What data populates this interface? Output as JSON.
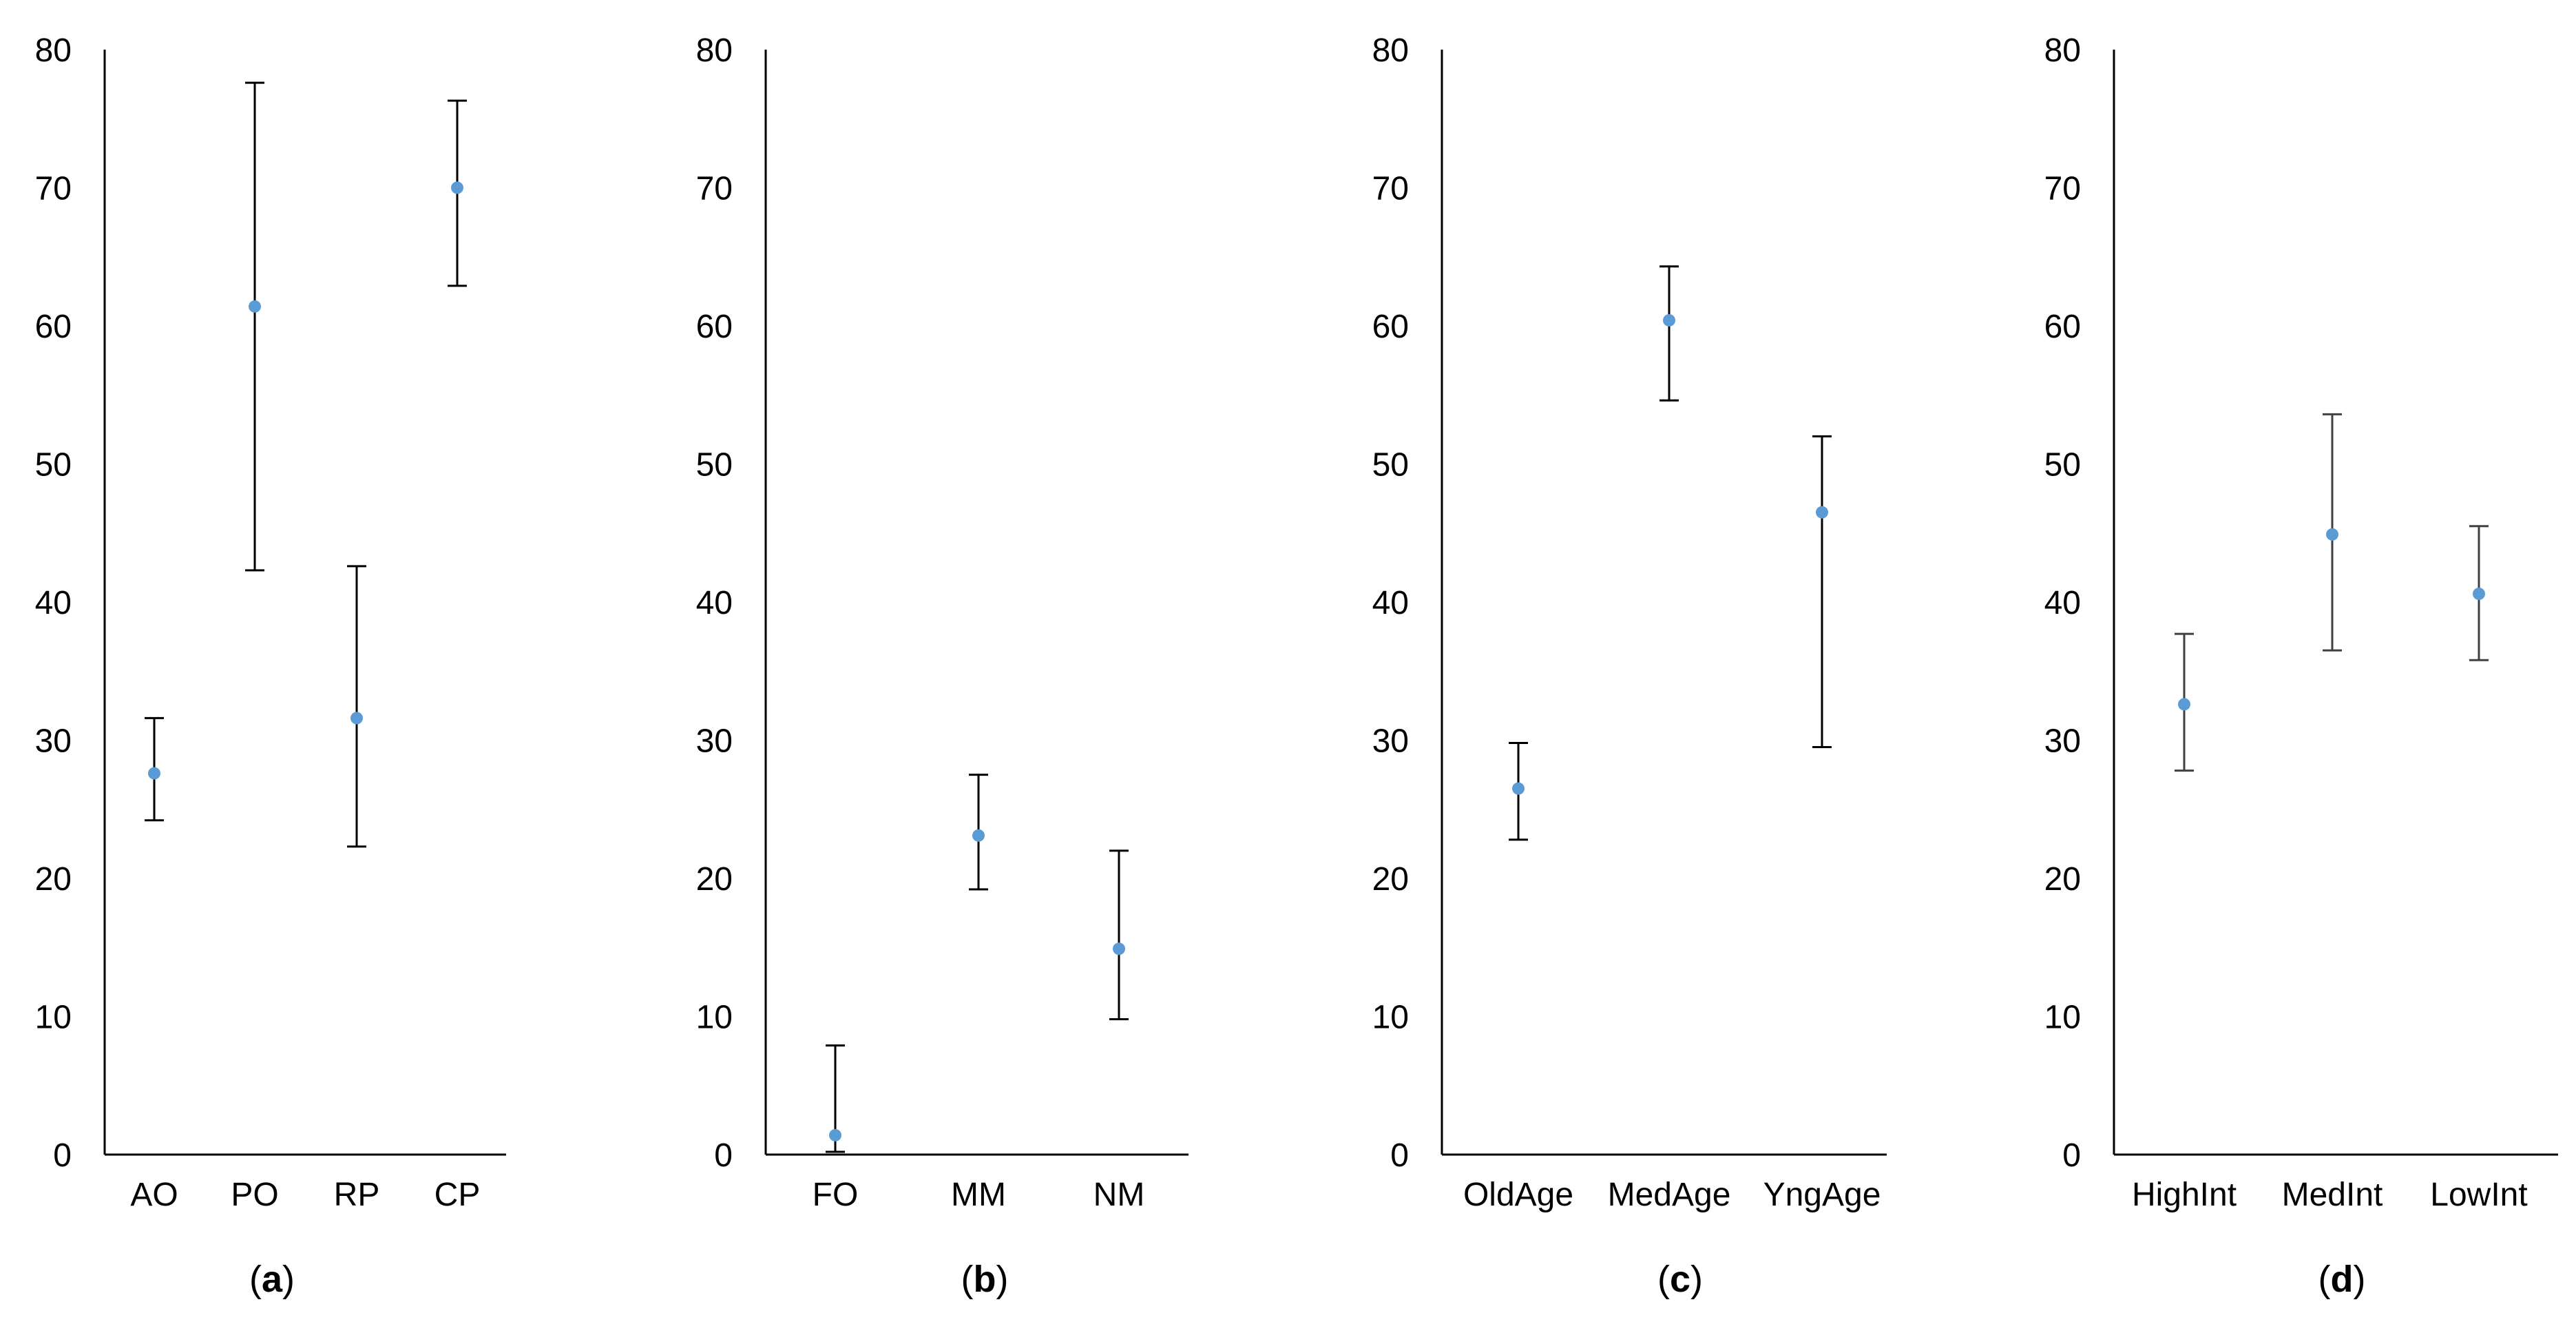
{
  "chart_data": [
    {
      "type": "scatter",
      "panel_label": "a",
      "categories": [
        "AO",
        "PO",
        "RP",
        "CP"
      ],
      "values": [
        27.6,
        61.4,
        31.6,
        70.0
      ],
      "error_low": [
        24.2,
        42.3,
        22.3,
        62.9
      ],
      "error_high": [
        31.6,
        77.6,
        42.6,
        76.3
      ],
      "ylim": [
        0,
        80
      ],
      "yticks": [
        "0",
        "10",
        "20",
        "30",
        "40",
        "50",
        "60",
        "70",
        "80"
      ],
      "grid": false,
      "marker_color": "#5b9bd5"
    },
    {
      "type": "scatter",
      "panel_label": "b",
      "categories": [
        "FO",
        "MM",
        "NM"
      ],
      "values": [
        1.4,
        23.1,
        14.9
      ],
      "error_low": [
        0.2,
        19.2,
        9.8
      ],
      "error_high": [
        7.9,
        27.5,
        22.0
      ],
      "ylim": [
        0,
        80
      ],
      "yticks": [
        "0",
        "10",
        "20",
        "30",
        "40",
        "50",
        "60",
        "70",
        "80"
      ],
      "grid": false,
      "marker_color": "#5b9bd5"
    },
    {
      "type": "scatter",
      "panel_label": "c",
      "categories": [
        "OldAge",
        "MedAge",
        "YngAge"
      ],
      "values": [
        26.5,
        60.4,
        46.5
      ],
      "error_low": [
        22.8,
        54.6,
        29.5
      ],
      "error_high": [
        29.8,
        64.3,
        52.0
      ],
      "ylim": [
        0,
        80
      ],
      "yticks": [
        "0",
        "10",
        "20",
        "30",
        "40",
        "50",
        "60",
        "70",
        "80"
      ],
      "grid": false,
      "marker_color": "#5b9bd5"
    },
    {
      "type": "scatter",
      "panel_label": "d",
      "categories": [
        "HighInt",
        "MedInt",
        "LowInt"
      ],
      "values": [
        32.6,
        44.9,
        40.6
      ],
      "error_low": [
        27.8,
        36.5,
        35.8
      ],
      "error_high": [
        37.7,
        53.6,
        45.5
      ],
      "ylim": [
        0,
        80
      ],
      "yticks": [
        "0",
        "10",
        "20",
        "30",
        "40",
        "50",
        "60",
        "70",
        "80"
      ],
      "grid": false,
      "marker_color": "#5b9bd5"
    }
  ]
}
